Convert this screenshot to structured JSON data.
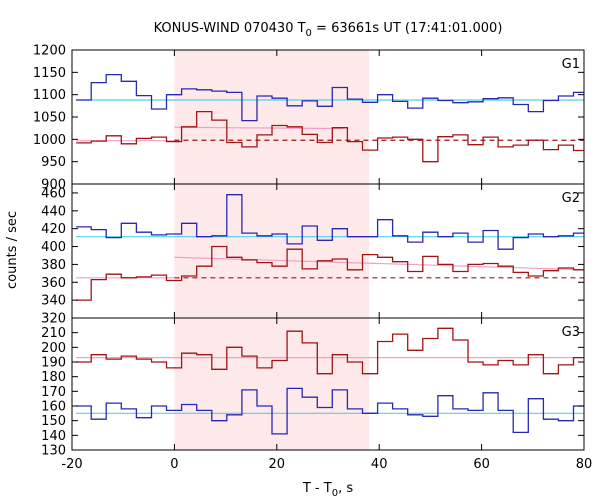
{
  "colors": {
    "blue": "#2828b4",
    "red": "#a01414",
    "cyan": "#50d2e6",
    "pink": "#f0a0c8",
    "shade": "#fde8ea"
  },
  "chart_data": {
    "type": "line",
    "title_main": "KONUS-WIND 070430 T",
    "title_sub": "0",
    "title_rest": " = 63661s UT (17:41:01.000)",
    "xlabel_main": "T - T",
    "xlabel_sub": "0",
    "xlabel_rest": ", s",
    "ylabel": "counts / sec",
    "xlim": [
      -20,
      80
    ],
    "xticks": [
      "-20",
      "0",
      "20",
      "40",
      "60",
      "80"
    ],
    "shaded_interval": [
      0,
      38
    ],
    "bin_width": 2.944,
    "bin_start": -19.2,
    "panels": [
      {
        "label": "G1",
        "ylim": [
          900,
          1200
        ],
        "yticks": [
          "900",
          "950",
          "1000",
          "1050",
          "1100",
          "1150",
          "1200"
        ],
        "series": [
          {
            "color_key": "blue",
            "values": [
              1088,
              1127,
              1145,
              1130,
              1098,
              1068,
              1100,
              1113,
              1111,
              1108,
              1105,
              1042,
              1097,
              1092,
              1075,
              1086,
              1074,
              1116,
              1090,
              1083,
              1100,
              1085,
              1070,
              1092,
              1087,
              1082,
              1084,
              1091,
              1093,
              1078,
              1062,
              1087,
              1097,
              1105,
              1076,
              1083,
              1077,
              1102,
              1085,
              1090,
              1092,
              1097,
              1075,
              1081,
              1086,
              1095,
              1081,
              1089,
              1090,
              1085,
              1073
            ]
          },
          {
            "color_key": "red",
            "values": [
              992,
              996,
              1008,
              990,
              1002,
              1005,
              995,
              1028,
              1062,
              1043,
              993,
              983,
              1010,
              1031,
              1028,
              1011,
              993,
              1026,
              995,
              976,
              1003,
              1005,
              1000,
              950,
              1006,
              1010,
              988,
              1005,
              983,
              987,
              998,
              977,
              987,
              975,
              992,
              1015,
              1024,
              1003,
              1005,
              1030,
              1045,
              1000,
              993,
              988,
              995,
              1001,
              997,
              1005,
              999,
              1010,
              1000
            ]
          }
        ],
        "fits": [
          {
            "color_key": "cyan",
            "style": "solid",
            "x": [
              -19.2,
              80
            ],
            "y": [
              1088,
              1088
            ]
          },
          {
            "color_key": "pink",
            "style": "solid",
            "x": [
              -19.2,
              0
            ],
            "y": [
              997,
              997
            ]
          },
          {
            "color_key": "pink",
            "style": "solid",
            "x": [
              0,
              33
            ],
            "y": [
              1027,
              1024
            ]
          },
          {
            "color_key": "red",
            "style": "dashed",
            "x": [
              0,
              80
            ],
            "y": [
              998,
              998
            ]
          }
        ]
      },
      {
        "label": "G2",
        "ylim": [
          320,
          470
        ],
        "yticks": [
          "320",
          "340",
          "360",
          "380",
          "400",
          "420",
          "440",
          "460"
        ],
        "series": [
          {
            "color_key": "blue",
            "values": [
              422,
              419,
              410,
              426,
              416,
              413,
              414,
              426,
              411,
              412,
              458,
              415,
              412,
              414,
              403,
              423,
              407,
              420,
              411,
              411,
              430,
              412,
              405,
              416,
              411,
              415,
              405,
              418,
              397,
              410,
              414,
              411,
              412,
              415,
              419,
              414,
              410,
              412,
              404,
              411,
              407,
              415,
              401,
              410,
              412,
              409,
              412,
              414,
              410,
              414,
              407
            ]
          },
          {
            "color_key": "red",
            "values": [
              340,
              363,
              369,
              365,
              366,
              368,
              362,
              367,
              378,
              400,
              388,
              385,
              382,
              378,
              397,
              375,
              384,
              386,
              374,
              391,
              388,
              383,
              372,
              389,
              380,
              372,
              380,
              381,
              378,
              371,
              367,
              373,
              376,
              374,
              368,
              378,
              360,
              376,
              373,
              376,
              375,
              368,
              372,
              369,
              374,
              361,
              379,
              368,
              365,
              377,
              372
            ]
          }
        ],
        "fits": [
          {
            "color_key": "cyan",
            "style": "solid",
            "x": [
              -19.2,
              80
            ],
            "y": [
              411,
              411
            ]
          },
          {
            "color_key": "pink",
            "style": "solid",
            "x": [
              -19.2,
              0
            ],
            "y": [
              365,
              365
            ]
          },
          {
            "color_key": "pink",
            "style": "solid",
            "x": [
              0,
              80
            ],
            "y": [
              388,
              374
            ]
          },
          {
            "color_key": "red",
            "style": "dashed",
            "x": [
              0,
              80
            ],
            "y": [
              365,
              365
            ]
          }
        ]
      },
      {
        "label": "G3",
        "ylim": [
          130,
          220
        ],
        "yticks": [
          "130",
          "140",
          "150",
          "160",
          "170",
          "180",
          "190",
          "200",
          "210"
        ],
        "series": [
          {
            "color_key": "blue",
            "values": [
              160,
              151,
              162,
              158,
              152,
              160,
              157,
              161,
              157,
              150,
              154,
              171,
              160,
              141,
              172,
              166,
              159,
              171,
              158,
              155,
              162,
              158,
              154,
              153,
              167,
              158,
              157,
              169,
              157,
              142,
              165,
              151,
              150,
              160,
              153,
              148,
              163,
              157,
              161,
              152,
              156,
              164,
              155,
              150,
              152,
              157,
              160,
              167,
              163,
              171,
              171
            ]
          },
          {
            "color_key": "red",
            "values": [
              190,
              195,
              192,
              194,
              192,
              190,
              186,
              196,
              195,
              185,
              200,
              194,
              186,
              191,
              211,
              203,
              182,
              195,
              190,
              182,
              204,
              209,
              198,
              206,
              213,
              205,
              190,
              188,
              191,
              188,
              195,
              182,
              188,
              193,
              195,
              198,
              191,
              192,
              196,
              188,
              186,
              191,
              196,
              184,
              198,
              186,
              190,
              191,
              200,
              191,
              190
            ]
          }
        ],
        "fits": [
          {
            "color_key": "cyan",
            "style": "solid",
            "x": [
              -19.2,
              80
            ],
            "y": [
              155,
              155
            ]
          },
          {
            "color_key": "pink",
            "style": "solid",
            "x": [
              -19.2,
              80
            ],
            "y": [
              193,
              193
            ]
          }
        ]
      }
    ]
  }
}
